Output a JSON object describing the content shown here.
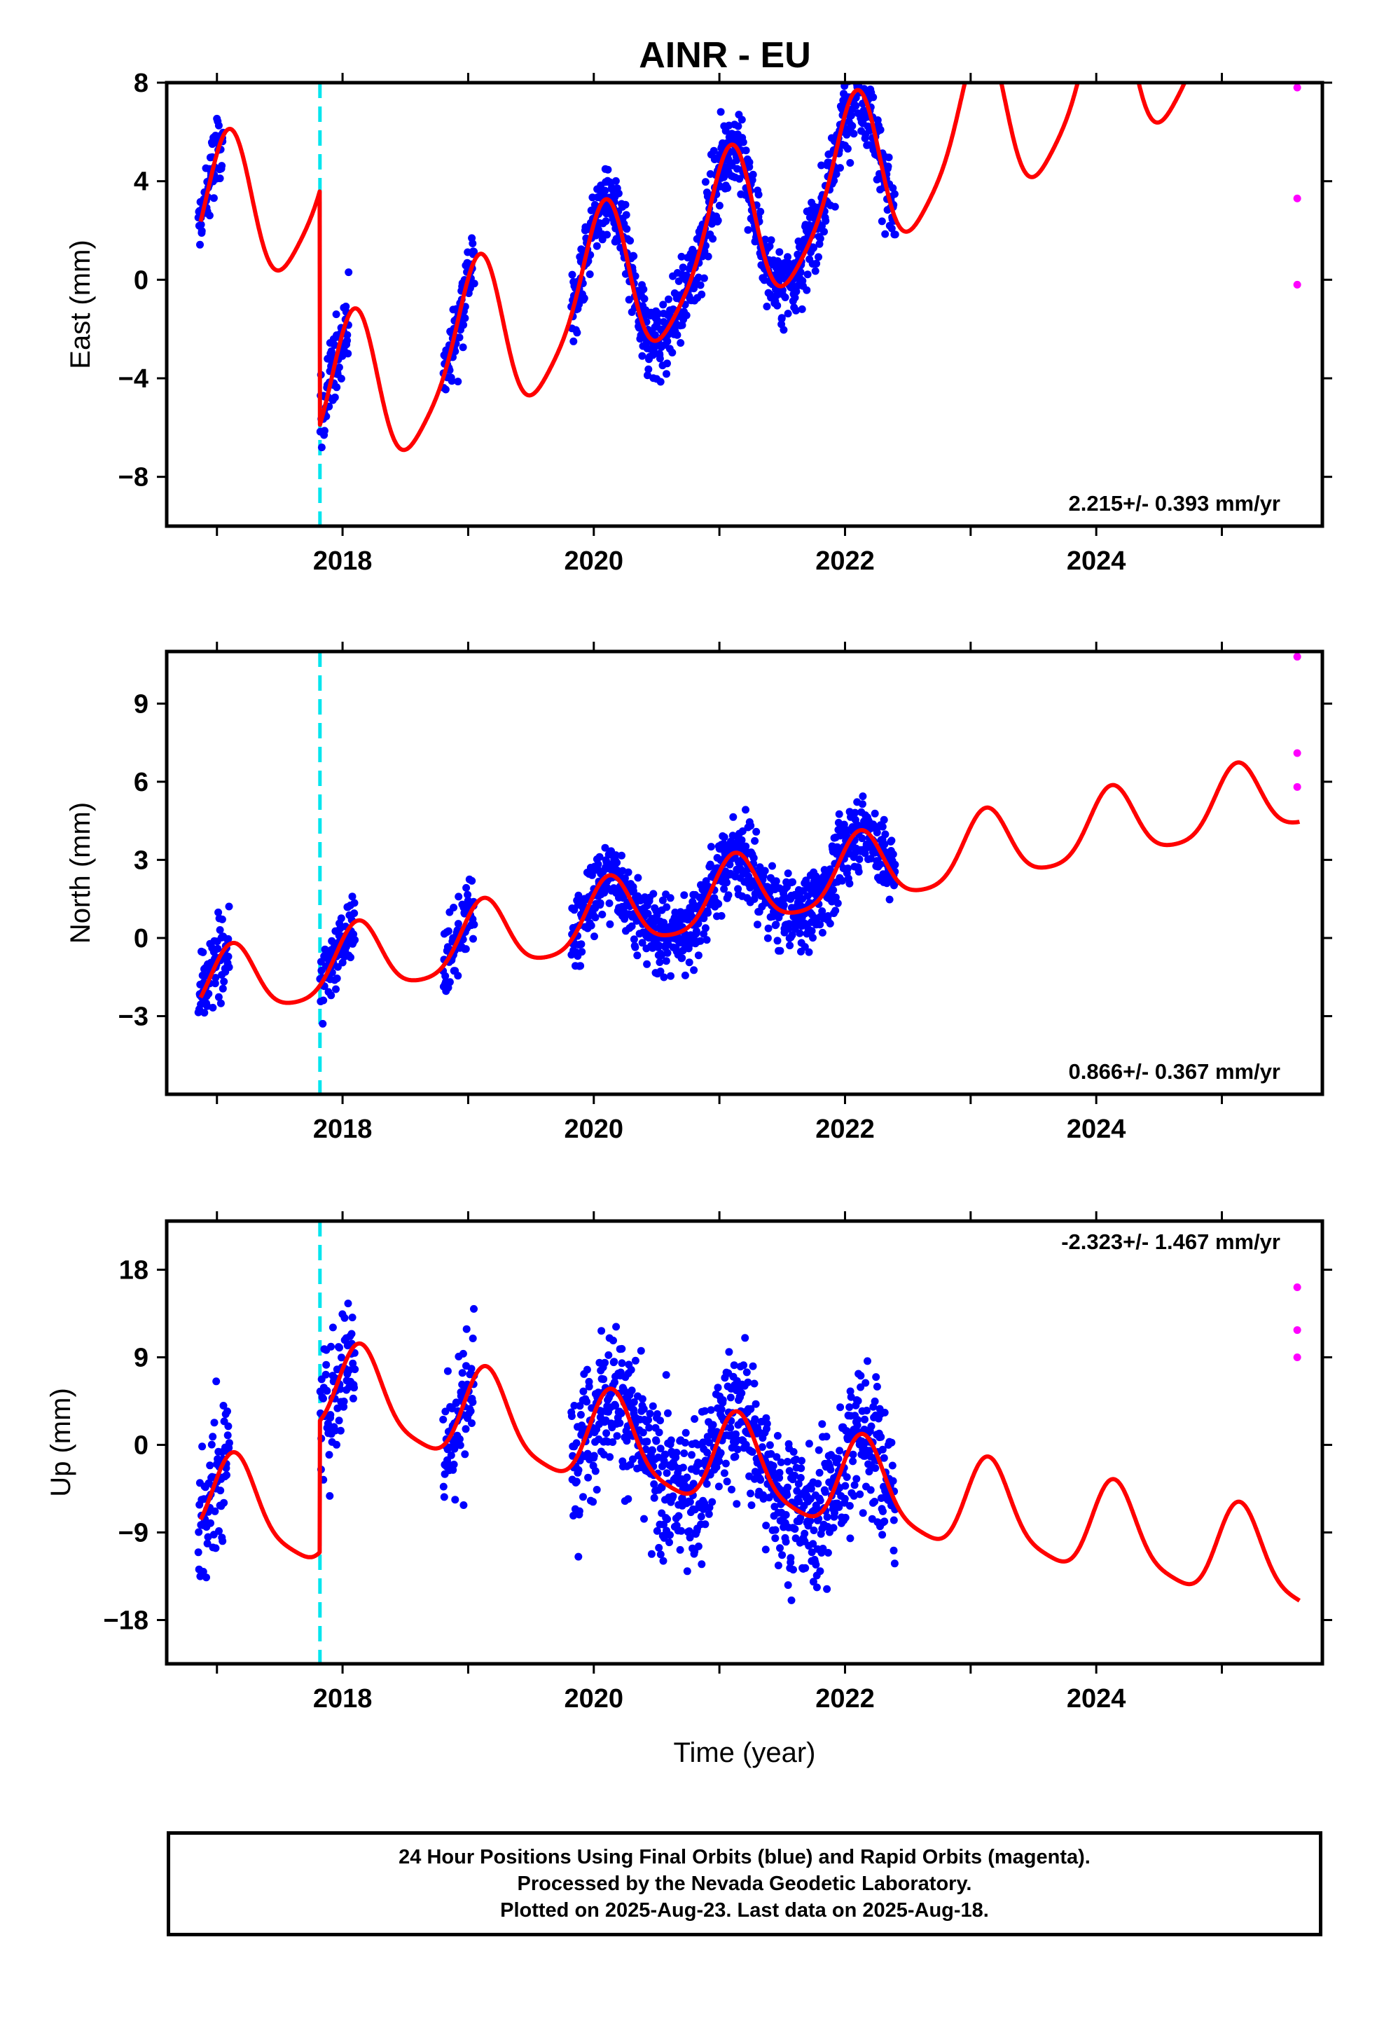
{
  "title": "AINR - EU",
  "xlabel": "Time (year)",
  "x_ticks": [
    2018,
    2020,
    2022,
    2024
  ],
  "x_range": [
    2016.6,
    2025.8
  ],
  "offset_marker_year": 2017.82,
  "colors": {
    "final": "#0000ff",
    "rapid": "#ff00ff",
    "model": "#ff0000",
    "offset": "#00e5ee"
  },
  "chart_data": [
    {
      "type": "scatter",
      "component": "east",
      "ylabel": "East (mm)",
      "rate_label": "2.215+/- 0.393 mm/yr",
      "y_ticks": [
        -8,
        -4,
        0,
        4,
        8
      ],
      "ylim": [
        -10,
        8
      ],
      "x_range": [
        2016.6,
        2025.8
      ],
      "rate": 2.215,
      "data_segments": [
        [
          2016.85,
          2017.05
        ],
        [
          2017.82,
          2018.05
        ],
        [
          2018.8,
          2019.05
        ],
        [
          2019.82,
          2022.4
        ]
      ],
      "model": {
        "a0": 2.2,
        "a1": 1.75,
        "jump": -9.5,
        "amp1": 3.2,
        "amp2": 0.6,
        "phase1": 1.15,
        "phase2": 0.0
      },
      "rapid_points": [
        {
          "x": 2025.6,
          "y": 7.8
        },
        {
          "x": 2025.6,
          "y": 3.3
        },
        {
          "x": 2025.6,
          "y": -0.2
        }
      ]
    },
    {
      "type": "scatter",
      "component": "north",
      "ylabel": "North (mm)",
      "rate_label": "0.866+/- 0.367 mm/yr",
      "y_ticks": [
        -3,
        0,
        3,
        6,
        9
      ],
      "ylim": [
        -6,
        11
      ],
      "x_range": [
        2016.6,
        2025.8
      ],
      "rate": 0.866,
      "data_segments": [
        [
          2016.85,
          2017.1
        ],
        [
          2017.82,
          2018.1
        ],
        [
          2018.8,
          2019.05
        ],
        [
          2019.82,
          2022.4
        ]
      ],
      "model": {
        "a0": -1.9,
        "a1": 0.7,
        "jump": 0.0,
        "amp1": 1.35,
        "amp2": 0.25,
        "phase1": 0.8,
        "phase2": 0.0
      },
      "rapid_points": [
        {
          "x": 2025.6,
          "y": 10.8
        },
        {
          "x": 2025.6,
          "y": 7.1
        },
        {
          "x": 2025.6,
          "y": 5.8
        }
      ]
    },
    {
      "type": "scatter",
      "component": "up",
      "ylabel": "Up (mm)",
      "rate_label": "-2.323+/- 1.467 mm/yr",
      "y_ticks": [
        -18,
        -9,
        0,
        9,
        18
      ],
      "ylim": [
        -22.5,
        23
      ],
      "x_range": [
        2016.6,
        2025.8
      ],
      "rate": -2.323,
      "data_segments": [
        [
          2016.85,
          2017.1
        ],
        [
          2017.82,
          2018.1
        ],
        [
          2018.8,
          2019.05
        ],
        [
          2019.82,
          2022.4
        ]
      ],
      "model": {
        "a0": -6.0,
        "a1": 4.0,
        "jump": 13.5,
        "amp1": 4.6,
        "amp2": 1.0,
        "phase1": 0.6,
        "phase2": 0.0
      },
      "rapid_points": [
        {
          "x": 2025.6,
          "y": 16.2
        },
        {
          "x": 2025.6,
          "y": 11.8
        },
        {
          "x": 2025.6,
          "y": 9.0
        }
      ]
    }
  ],
  "footer": {
    "line1": "24 Hour Positions Using Final Orbits (blue) and Rapid Orbits (magenta).",
    "line2": "Processed by the Nevada Geodetic Laboratory.",
    "line3": "Plotted on 2025-Aug-23. Last data on 2025-Aug-18."
  }
}
